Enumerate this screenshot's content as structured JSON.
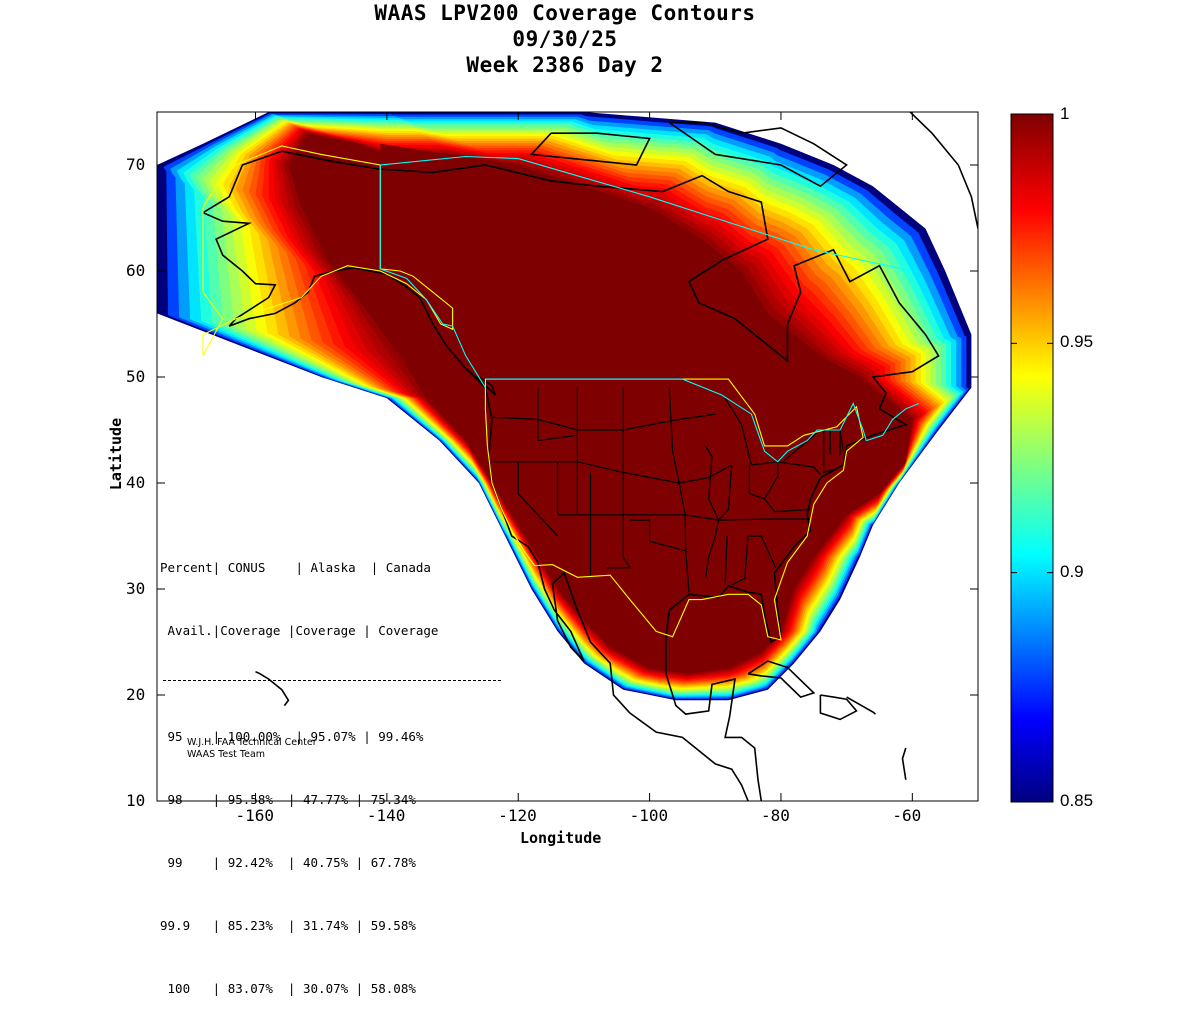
{
  "title": {
    "line1": "WAAS LPV200 Coverage Contours",
    "line2": "09/30/25",
    "line3": "Week 2386 Day 2"
  },
  "axes": {
    "xlabel": "Longitude",
    "ylabel": "Latitude",
    "xlim": [
      -175,
      -50
    ],
    "ylim": [
      10,
      75
    ],
    "xticks": [
      "-160",
      "-140",
      "-120",
      "-100",
      "-80",
      "-60"
    ],
    "yticks": [
      "70",
      "60",
      "50",
      "40",
      "30",
      "20",
      "10"
    ]
  },
  "colorbar": {
    "colormap": "jet",
    "range": [
      0.85,
      1
    ],
    "ticks": [
      "1",
      "0.95",
      "0.9",
      "0.85"
    ]
  },
  "stats_table": {
    "header1": "Percent| CONUS    | Alaska  | Canada",
    "header2": " Avail.|Coverage |Coverage | Coverage",
    "rows": [
      " 95    | 100.00%  | 95.07% | 99.46%",
      " 98    | 95.58%  | 47.77% | 75.34%",
      " 99    | 92.42%  | 40.75% | 67.78%",
      "99.9   | 85.23%  | 31.74% | 59.58%",
      " 100   | 83.07%  | 30.07% | 58.08%"
    ]
  },
  "credit": {
    "line1": "W.J.H. FAA Technical Center",
    "line2": "WAAS Test Team"
  },
  "chart_data": {
    "type": "heatmap",
    "title": "WAAS LPV200 Coverage Contours",
    "subtitle": [
      "09/30/25",
      "Week 2386 Day 2"
    ],
    "xlabel": "Longitude",
    "ylabel": "Latitude",
    "xlim": [
      -175,
      -50
    ],
    "ylim": [
      10,
      75
    ],
    "color_range": [
      0.85,
      1
    ],
    "coverage_table": {
      "columns": [
        "Percent Avail.",
        "CONUS Coverage",
        "Alaska Coverage",
        "Canada Coverage"
      ],
      "rows": [
        [
          95,
          "100.00%",
          "95.07%",
          "99.46%"
        ],
        [
          98,
          "95.58%",
          "47.77%",
          "75.34%"
        ],
        [
          99,
          "92.42%",
          "40.75%",
          "67.78%"
        ],
        [
          99.9,
          "85.23%",
          "31.74%",
          "59.58%"
        ],
        [
          100,
          "83.07%",
          "30.07%",
          "58.08%"
        ]
      ]
    },
    "contour_levels_approx": [
      {
        "level": 0.85,
        "outline": [
          [
            -175,
            56
          ],
          [
            -168,
            52
          ],
          [
            -160,
            51
          ],
          [
            -150,
            50
          ],
          [
            -140,
            48
          ],
          [
            -132,
            44
          ],
          [
            -126,
            40
          ],
          [
            -122,
            35
          ],
          [
            -118,
            30
          ],
          [
            -114,
            26
          ],
          [
            -110,
            23
          ],
          [
            -104,
            20.5
          ],
          [
            -96,
            19.5
          ],
          [
            -88,
            19.5
          ],
          [
            -82,
            20.5
          ],
          [
            -78,
            23
          ],
          [
            -74,
            26
          ],
          [
            -71,
            29
          ],
          [
            -68,
            33
          ],
          [
            -66,
            36
          ],
          [
            -62,
            40
          ],
          [
            -56,
            45
          ],
          [
            -51,
            49
          ],
          [
            -51,
            54
          ],
          [
            -55,
            60
          ],
          [
            -58,
            64
          ],
          [
            -62,
            66
          ],
          [
            -66,
            68
          ],
          [
            -72,
            70
          ],
          [
            -80,
            72
          ],
          [
            -90,
            74
          ],
          [
            -110,
            75
          ],
          [
            -140,
            75
          ],
          [
            -158,
            75
          ],
          [
            -168,
            72
          ],
          [
            -175,
            70
          ]
        ]
      },
      {
        "level": 0.99,
        "outline": [
          [
            -152,
            73
          ],
          [
            -144,
            72
          ],
          [
            -140,
            71
          ],
          [
            -130,
            71
          ],
          [
            -120,
            70
          ],
          [
            -110,
            68
          ],
          [
            -100,
            66
          ],
          [
            -92,
            63
          ],
          [
            -86,
            60
          ],
          [
            -82,
            56
          ],
          [
            -78,
            54
          ],
          [
            -74,
            52
          ],
          [
            -68,
            50
          ],
          [
            -63,
            48
          ],
          [
            -60,
            46
          ],
          [
            -61,
            42
          ],
          [
            -65,
            39
          ],
          [
            -70,
            37
          ],
          [
            -75,
            33
          ],
          [
            -78,
            30
          ],
          [
            -80,
            26
          ],
          [
            -83,
            24
          ],
          [
            -88,
            22.5
          ],
          [
            -94,
            22
          ],
          [
            -100,
            22.5
          ],
          [
            -106,
            24.5
          ],
          [
            -110,
            27
          ],
          [
            -114,
            30
          ],
          [
            -117,
            33
          ],
          [
            -120,
            36
          ],
          [
            -124,
            40
          ],
          [
            -128,
            44
          ],
          [
            -134,
            48
          ],
          [
            -138,
            52
          ],
          [
            -144,
            57
          ],
          [
            -149,
            61
          ],
          [
            -153,
            66
          ],
          [
            -155,
            70
          ]
        ]
      }
    ]
  }
}
